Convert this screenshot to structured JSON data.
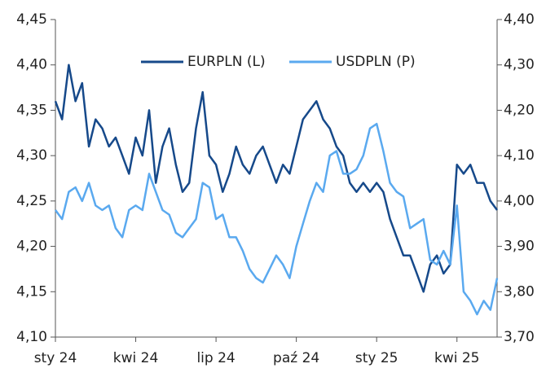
{
  "chart_data": {
    "type": "line",
    "categories": [
      "sty 24",
      null,
      null,
      null,
      null,
      null,
      null,
      null,
      null,
      null,
      null,
      null,
      "kwi 24",
      null,
      null,
      null,
      null,
      null,
      null,
      null,
      null,
      null,
      null,
      null,
      "lip 24",
      null,
      null,
      null,
      null,
      null,
      null,
      null,
      null,
      null,
      null,
      null,
      "paź 24",
      null,
      null,
      null,
      null,
      null,
      null,
      null,
      null,
      null,
      null,
      null,
      "sty 25",
      null,
      null,
      null,
      null,
      null,
      null,
      null,
      null,
      null,
      null,
      null,
      "kwi 25",
      null,
      null,
      null,
      null,
      null,
      null
    ],
    "series": [
      {
        "name": "EURPLN (L)",
        "color": "#16498a",
        "axis": "y",
        "values": [
          4.36,
          4.34,
          4.4,
          4.36,
          4.38,
          4.31,
          4.34,
          4.33,
          4.31,
          4.32,
          4.3,
          4.28,
          4.32,
          4.3,
          4.35,
          4.27,
          4.31,
          4.33,
          4.29,
          4.26,
          4.27,
          4.33,
          4.37,
          4.3,
          4.29,
          4.26,
          4.28,
          4.31,
          4.29,
          4.28,
          4.3,
          4.31,
          4.29,
          4.27,
          4.29,
          4.28,
          4.31,
          4.34,
          4.35,
          4.36,
          4.34,
          4.33,
          4.31,
          4.3,
          4.27,
          4.26,
          4.27,
          4.26,
          4.27,
          4.26,
          4.23,
          4.21,
          4.19,
          4.19,
          4.17,
          4.15,
          4.18,
          4.19,
          4.17,
          4.18,
          4.29,
          4.28,
          4.29,
          4.27,
          4.27,
          4.25,
          4.24
        ]
      },
      {
        "name": "USDPLN (P)",
        "color": "#5aa9ef",
        "axis": "y2",
        "values": [
          3.98,
          3.96,
          4.02,
          4.03,
          4.0,
          4.04,
          3.99,
          3.98,
          3.99,
          3.94,
          3.92,
          3.98,
          3.99,
          3.98,
          4.06,
          4.02,
          3.98,
          3.97,
          3.93,
          3.92,
          3.94,
          3.96,
          4.04,
          4.03,
          3.96,
          3.97,
          3.92,
          3.92,
          3.89,
          3.85,
          3.83,
          3.82,
          3.85,
          3.88,
          3.86,
          3.83,
          3.9,
          3.95,
          4.0,
          4.04,
          4.02,
          4.1,
          4.11,
          4.06,
          4.06,
          4.07,
          4.1,
          4.16,
          4.17,
          4.11,
          4.04,
          4.02,
          4.01,
          3.94,
          3.95,
          3.96,
          3.87,
          3.86,
          3.89,
          3.86,
          3.99,
          3.8,
          3.78,
          3.75,
          3.78,
          3.76,
          3.83
        ]
      }
    ],
    "ylim": [
      4.1,
      4.45
    ],
    "yticks": [
      {
        "value": 4.1,
        "label": "4,10"
      },
      {
        "value": 4.15,
        "label": "4,15"
      },
      {
        "value": 4.2,
        "label": "4,20"
      },
      {
        "value": 4.25,
        "label": "4,25"
      },
      {
        "value": 4.3,
        "label": "4,30"
      },
      {
        "value": 4.35,
        "label": "4,35"
      },
      {
        "value": 4.4,
        "label": "4,40"
      },
      {
        "value": 4.45,
        "label": "4,45"
      }
    ],
    "y2lim": [
      3.7,
      4.4
    ],
    "y2ticks": [
      {
        "value": 3.7,
        "label": "3,70"
      },
      {
        "value": 3.8,
        "label": "3,80"
      },
      {
        "value": 3.9,
        "label": "3,90"
      },
      {
        "value": 4.0,
        "label": "4,00"
      },
      {
        "value": 4.1,
        "label": "4,10"
      },
      {
        "value": 4.2,
        "label": "4,20"
      },
      {
        "value": 4.3,
        "label": "4,30"
      },
      {
        "value": 4.4,
        "label": "4,40"
      }
    ],
    "grid": false,
    "legend": "top"
  }
}
